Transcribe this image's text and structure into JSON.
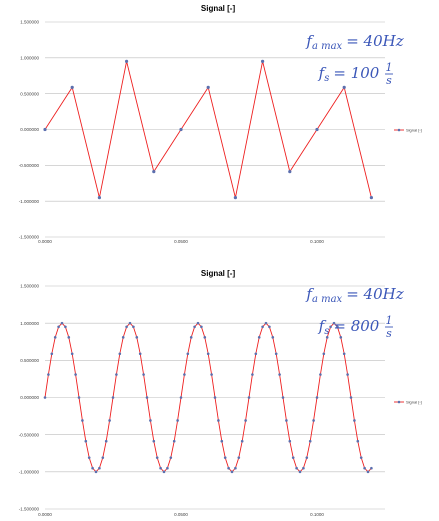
{
  "chart_data": [
    {
      "type": "line",
      "title": "Signal [-]",
      "legend": {
        "label": "Signal [-]",
        "position": "right"
      },
      "annotation": {
        "fmax_label": "f",
        "fmax_sub": "a max",
        "fmax_value": "= 40Hz",
        "fs_label": "f",
        "fs_sub": "s",
        "fs_value": "= 100",
        "fs_unit_num": "1",
        "fs_unit_den": "s"
      },
      "signal": {
        "amplitude": 1.0,
        "frequency_hz": 40,
        "sample_rate_hz": 100,
        "t_start": 0,
        "t_end": 0.12
      },
      "ylim": [
        -1.5,
        1.5
      ],
      "xlim": [
        0,
        0.125
      ],
      "yticks": [
        "1.500000",
        "1.000000",
        "0.500000",
        "0.000000",
        "-0.500000",
        "-1.000000",
        "-1.500000"
      ],
      "xticks": [
        "0.0000",
        "0.0500",
        "0.1000"
      ],
      "grid": "horizontal",
      "colors": {
        "line": "#ee2020",
        "marker": "#5b6fae"
      }
    },
    {
      "type": "line",
      "title": "Signal [-]",
      "legend": {
        "label": "Signal [-]",
        "position": "right"
      },
      "annotation": {
        "fmax_label": "f",
        "fmax_sub": "a max",
        "fmax_value": "= 40Hz",
        "fs_label": "f",
        "fs_sub": "s",
        "fs_value": "= 800",
        "fs_unit_num": "1",
        "fs_unit_den": "s"
      },
      "signal": {
        "amplitude": 1.0,
        "frequency_hz": 40,
        "sample_rate_hz": 800,
        "t_start": 0,
        "t_end": 0.12
      },
      "ylim": [
        -1.5,
        1.5
      ],
      "xlim": [
        0,
        0.125
      ],
      "yticks": [
        "1.500000",
        "1.000000",
        "0.500000",
        "0.000000",
        "-0.500000",
        "-1.000000",
        "-1.500000"
      ],
      "xticks": [
        "0.0000",
        "0.0500",
        "0.1000"
      ],
      "grid": "horizontal",
      "colors": {
        "line": "#ee2020",
        "marker": "#5b6fae"
      }
    }
  ]
}
